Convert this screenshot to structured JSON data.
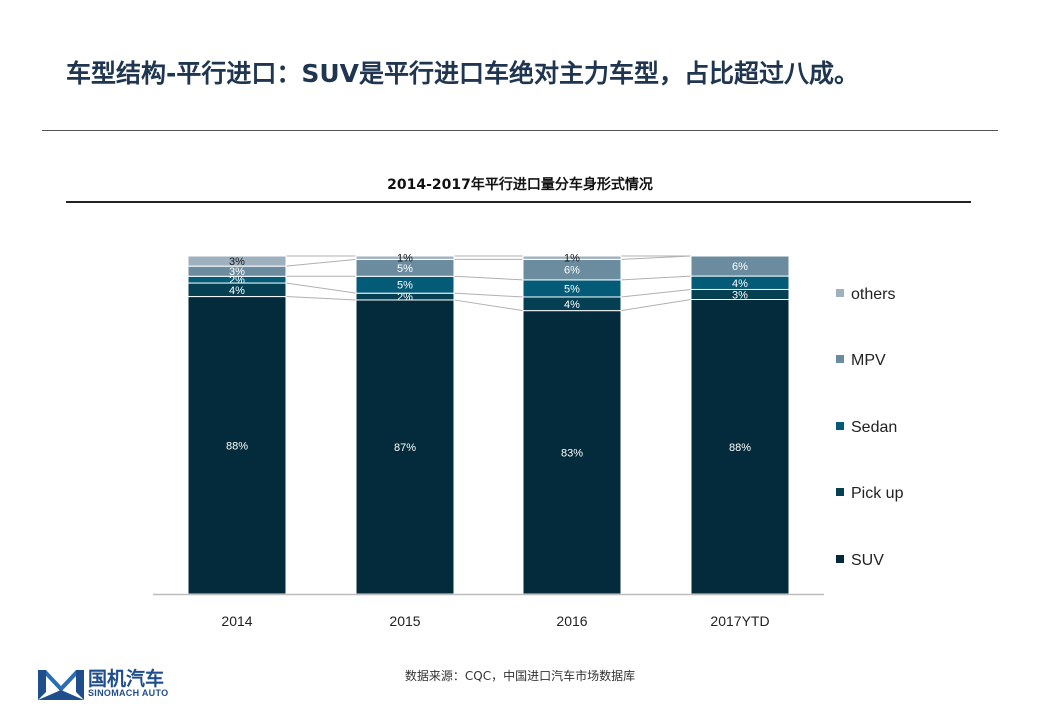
{
  "slide_title": "车型结构-平行进口：SUV是平行进口车绝对主力车型，占比超过八成。",
  "source": "数据来源：CQC，中国进口汽车市场数据库",
  "logo": {
    "name_cn": "国机汽车",
    "name_en": "SINOMACH AUTO"
  },
  "chart_data": {
    "type": "bar",
    "stacked": true,
    "percent_stacked": true,
    "title": "2014-2017年平行进口量分车身形式情况",
    "categories": [
      "2014",
      "2015",
      "2016",
      "2017YTD"
    ],
    "series": [
      {
        "name": "SUV",
        "values": [
          88,
          87,
          83,
          88
        ],
        "labels": [
          "88%",
          "87%",
          "83%",
          "88%"
        ],
        "color": "#042b3b"
      },
      {
        "name": "Pick up",
        "values": [
          4,
          2,
          4,
          3
        ],
        "labels": [
          "4%",
          "2%",
          "4%",
          "3%"
        ],
        "color": "#053f52"
      },
      {
        "name": "Sedan",
        "values": [
          2,
          5,
          5,
          4
        ],
        "labels": [
          "2%",
          "5%",
          "5%",
          "4%"
        ],
        "color": "#045b78"
      },
      {
        "name": "MPV",
        "values": [
          3,
          5,
          6,
          6
        ],
        "labels": [
          "3%",
          "5%",
          "6%",
          "6%"
        ],
        "color": "#6b8c9f"
      },
      {
        "name": "others",
        "values": [
          3,
          1,
          1,
          0
        ],
        "labels": [
          "3%",
          "1%",
          "1%",
          ""
        ],
        "color": "#9fb1bf"
      }
    ],
    "legend_order": [
      "others",
      "MPV",
      "Sedan",
      "Pick up",
      "SUV"
    ],
    "legend": "right",
    "series_lines": true,
    "grid": false,
    "ylim": [
      0,
      100
    ]
  }
}
